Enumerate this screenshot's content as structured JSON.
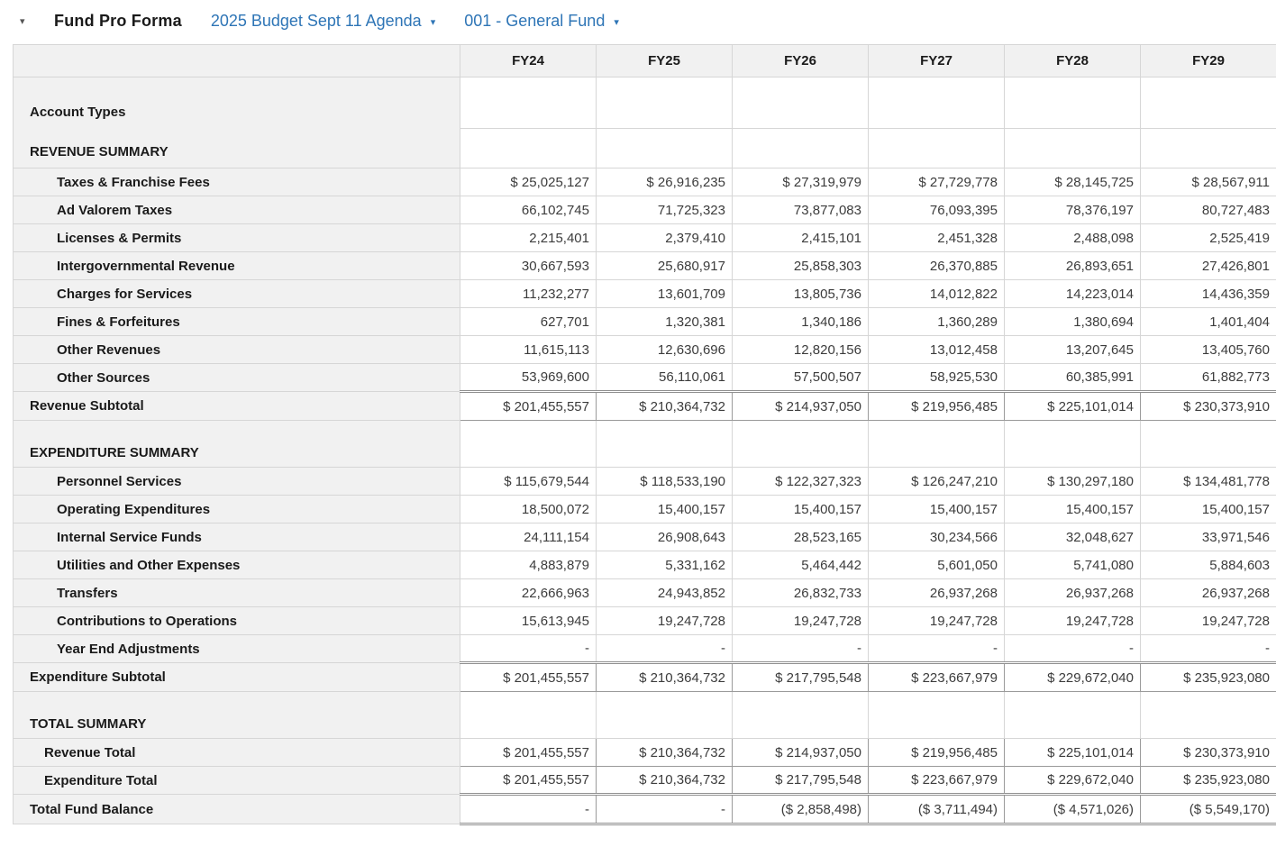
{
  "header": {
    "title": "Fund Pro Forma",
    "budget_selector": "2025 Budget Sept 11 Agenda",
    "fund_selector": "001 - General Fund",
    "collapse_icon": "▾",
    "dropdown_icon": "▾"
  },
  "colors": {
    "link_blue": "#2E75B6",
    "header_bg": "#F1F1F1",
    "grid_border": "#D6D6D6",
    "total_border": "#8F8F8F"
  },
  "table": {
    "columns": [
      "FY24",
      "FY25",
      "FY26",
      "FY27",
      "FY28",
      "FY29"
    ],
    "account_types_label": "Account Types",
    "revenue_summary_label": "REVENUE SUMMARY",
    "expenditure_summary_label": "EXPENDITURE SUMMARY",
    "total_summary_label": "TOTAL SUMMARY",
    "rows": [
      {
        "label": "Taxes & Franchise Fees",
        "values": [
          "$ 25,025,127",
          "$ 26,916,235",
          "$ 27,319,979",
          "$ 27,729,778",
          "$ 28,145,725",
          "$ 28,567,911"
        ]
      },
      {
        "label": "Ad Valorem Taxes",
        "values": [
          "66,102,745",
          "71,725,323",
          "73,877,083",
          "76,093,395",
          "78,376,197",
          "80,727,483"
        ]
      },
      {
        "label": "Licenses & Permits",
        "values": [
          "2,215,401",
          "2,379,410",
          "2,415,101",
          "2,451,328",
          "2,488,098",
          "2,525,419"
        ]
      },
      {
        "label": "Intergovernmental Revenue",
        "values": [
          "30,667,593",
          "25,680,917",
          "25,858,303",
          "26,370,885",
          "26,893,651",
          "27,426,801"
        ]
      },
      {
        "label": "Charges for Services",
        "values": [
          "11,232,277",
          "13,601,709",
          "13,805,736",
          "14,012,822",
          "14,223,014",
          "14,436,359"
        ]
      },
      {
        "label": "Fines & Forfeitures",
        "values": [
          "627,701",
          "1,320,381",
          "1,340,186",
          "1,360,289",
          "1,380,694",
          "1,401,404"
        ]
      },
      {
        "label": "Other Revenues",
        "values": [
          "11,615,113",
          "12,630,696",
          "12,820,156",
          "13,012,458",
          "13,207,645",
          "13,405,760"
        ]
      },
      {
        "label": "Other Sources",
        "values": [
          "53,969,600",
          "56,110,061",
          "57,500,507",
          "58,925,530",
          "60,385,991",
          "61,882,773"
        ]
      },
      {
        "label": "Revenue Subtotal",
        "values": [
          "$ 201,455,557",
          "$ 210,364,732",
          "$ 214,937,050",
          "$ 219,956,485",
          "$ 225,101,014",
          "$ 230,373,910"
        ]
      },
      {
        "label": "Personnel Services",
        "values": [
          "$ 115,679,544",
          "$ 118,533,190",
          "$ 122,327,323",
          "$ 126,247,210",
          "$ 130,297,180",
          "$ 134,481,778"
        ]
      },
      {
        "label": "Operating Expenditures",
        "values": [
          "18,500,072",
          "15,400,157",
          "15,400,157",
          "15,400,157",
          "15,400,157",
          "15,400,157"
        ]
      },
      {
        "label": "Internal Service Funds",
        "values": [
          "24,111,154",
          "26,908,643",
          "28,523,165",
          "30,234,566",
          "32,048,627",
          "33,971,546"
        ]
      },
      {
        "label": "Utilities and Other Expenses",
        "values": [
          "4,883,879",
          "5,331,162",
          "5,464,442",
          "5,601,050",
          "5,741,080",
          "5,884,603"
        ]
      },
      {
        "label": "Transfers",
        "values": [
          "22,666,963",
          "24,943,852",
          "26,832,733",
          "26,937,268",
          "26,937,268",
          "26,937,268"
        ]
      },
      {
        "label": "Contributions to Operations",
        "values": [
          "15,613,945",
          "19,247,728",
          "19,247,728",
          "19,247,728",
          "19,247,728",
          "19,247,728"
        ]
      },
      {
        "label": "Year End Adjustments",
        "values": [
          "-",
          "-",
          "-",
          "-",
          "-",
          "-"
        ]
      },
      {
        "label": "Expenditure Subtotal",
        "values": [
          "$ 201,455,557",
          "$ 210,364,732",
          "$ 217,795,548",
          "$ 223,667,979",
          "$ 229,672,040",
          "$ 235,923,080"
        ]
      },
      {
        "label": "Revenue Total",
        "values": [
          "$ 201,455,557",
          "$ 210,364,732",
          "$ 214,937,050",
          "$ 219,956,485",
          "$ 225,101,014",
          "$ 230,373,910"
        ]
      },
      {
        "label": "Expenditure Total",
        "values": [
          "$ 201,455,557",
          "$ 210,364,732",
          "$ 217,795,548",
          "$ 223,667,979",
          "$ 229,672,040",
          "$ 235,923,080"
        ]
      },
      {
        "label": "Total Fund Balance",
        "values": [
          "-",
          "-",
          "($ 2,858,498)",
          "($ 3,711,494)",
          "($ 4,571,026)",
          "($ 5,549,170)"
        ]
      }
    ]
  }
}
